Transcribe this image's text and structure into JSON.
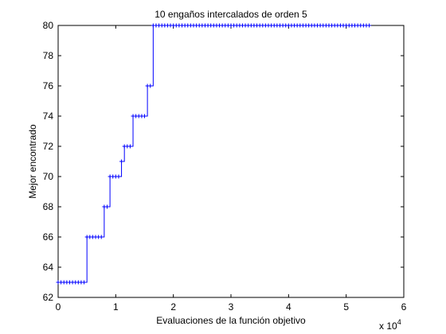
{
  "chart_data": {
    "type": "line",
    "title": "10 engaños intercalados de orden 5",
    "xlabel": "Evaluaciones de la función objetivo",
    "ylabel": "Mejor encontrado",
    "x_multiplier": "x 10",
    "x_multiplier_exp": "4",
    "xlim": [
      0,
      60000
    ],
    "ylim": [
      62,
      80
    ],
    "xticks": [
      0,
      10000,
      20000,
      30000,
      40000,
      50000,
      60000
    ],
    "xtick_labels": [
      "0",
      "1",
      "2",
      "3",
      "4",
      "5",
      "6"
    ],
    "yticks": [
      62,
      64,
      66,
      68,
      70,
      72,
      74,
      76,
      78,
      80
    ],
    "ytick_labels": [
      "62",
      "64",
      "66",
      "68",
      "70",
      "72",
      "74",
      "76",
      "78",
      "80"
    ],
    "grid": false,
    "series": [
      {
        "color": "#0000ff",
        "marker": "+",
        "sample_step": 500,
        "x_start": 0,
        "x_end": 54000,
        "steps": [
          {
            "x": 0,
            "y": 63
          },
          {
            "x": 5000,
            "y": 66
          },
          {
            "x": 8000,
            "y": 68
          },
          {
            "x": 9000,
            "y": 70
          },
          {
            "x": 11000,
            "y": 71
          },
          {
            "x": 11500,
            "y": 72
          },
          {
            "x": 13000,
            "y": 74
          },
          {
            "x": 15500,
            "y": 76
          },
          {
            "x": 16500,
            "y": 80
          }
        ]
      }
    ]
  }
}
